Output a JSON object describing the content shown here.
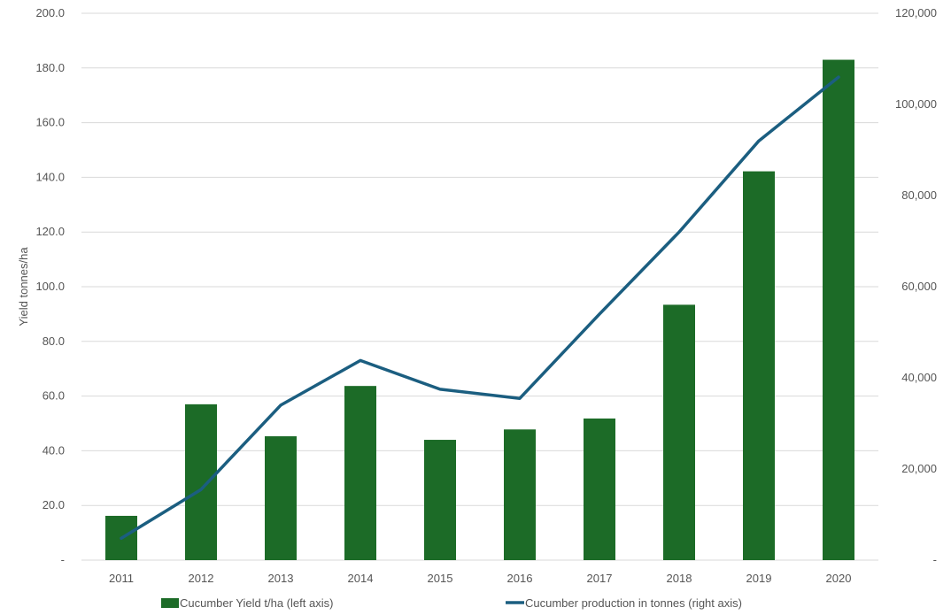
{
  "chart_data": {
    "type": "bar",
    "categories": [
      "2011",
      "2012",
      "2013",
      "2014",
      "2015",
      "2016",
      "2017",
      "2018",
      "2019",
      "2020"
    ],
    "series": [
      {
        "name": "Cucumber Yield t/ha (left axis)",
        "type": "bar",
        "axis": "left",
        "color": "#1c6b27",
        "values": [
          16.2,
          57.0,
          45.3,
          63.7,
          44.0,
          47.8,
          51.8,
          93.4,
          142.2,
          183.0
        ]
      },
      {
        "name": "Cucumber production in tonnes (right axis)",
        "type": "line",
        "axis": "right",
        "color": "#1b5e80",
        "values": [
          4800,
          15500,
          34000,
          43800,
          37500,
          35500,
          54000,
          72000,
          92000,
          106000
        ]
      }
    ],
    "ylabel": "Yield tonnes/ha",
    "y2label": "",
    "ylim": [
      0,
      200
    ],
    "y2lim": [
      0,
      120000
    ],
    "yticks": [
      "-",
      "20.0",
      "40.0",
      "60.0",
      "80.0",
      "100.0",
      "120.0",
      "140.0",
      "160.0",
      "180.0",
      "200.0"
    ],
    "y2ticks": [
      "-",
      "20,000",
      "40,000",
      "60,000",
      "80,000",
      "100,000",
      "120,000"
    ],
    "grid": true,
    "legend_position": "bottom",
    "gridline_color": "#d9d9d9"
  }
}
